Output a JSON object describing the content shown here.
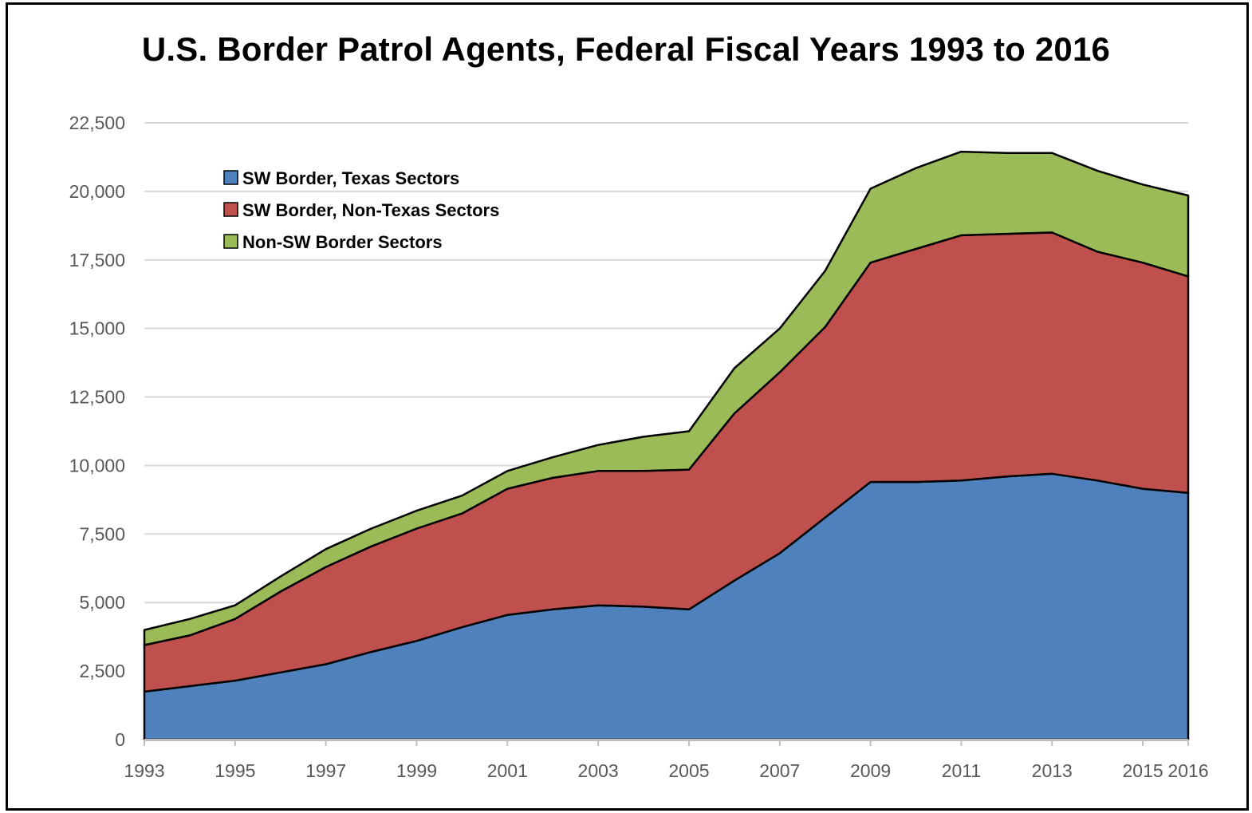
{
  "chart_data": {
    "type": "area",
    "stacked": true,
    "title": "U.S. Border Patrol Agents, Federal Fiscal Years 1993 to 2016",
    "xlabel": "",
    "ylabel": "",
    "ylim": [
      0,
      22500
    ],
    "xlim": [
      1993,
      2016
    ],
    "yticks": [
      0,
      2500,
      5000,
      7500,
      10000,
      12500,
      15000,
      17500,
      20000,
      22500
    ],
    "ytick_labels": [
      "0",
      "2,500",
      "5,000",
      "7,500",
      "10,000",
      "12,500",
      "15,000",
      "17,500",
      "20,000",
      "22,500"
    ],
    "xticks": [
      1993,
      1995,
      1997,
      1999,
      2001,
      2003,
      2005,
      2007,
      2009,
      2011,
      2013,
      2015,
      2016
    ],
    "xtick_labels": [
      "1993",
      "1995",
      "1997",
      "1999",
      "2001",
      "2003",
      "2005",
      "2007",
      "2009",
      "2011",
      "2013",
      "2015",
      "2016"
    ],
    "grid": "horizontal",
    "legend_position": "top-left",
    "x": [
      1993,
      1994,
      1995,
      1996,
      1997,
      1998,
      1999,
      2000,
      2001,
      2002,
      2003,
      2004,
      2005,
      2006,
      2007,
      2008,
      2009,
      2010,
      2011,
      2012,
      2013,
      2014,
      2015,
      2016
    ],
    "series": [
      {
        "name": "SW Border, Texas Sectors",
        "color": "#4f81bd",
        "values": [
          1750,
          1950,
          2150,
          2450,
          2750,
          3200,
          3600,
          4100,
          4550,
          4750,
          4900,
          4850,
          4750,
          5800,
          6800,
          8100,
          9400,
          9400,
          9450,
          9600,
          9700,
          9450,
          9150,
          9000
        ]
      },
      {
        "name": "SW Border, Non-Texas Sectors",
        "color": "#c0504d",
        "values": [
          1700,
          1850,
          2250,
          2950,
          3550,
          3850,
          4100,
          4150,
          4600,
          4800,
          4900,
          4950,
          5100,
          6100,
          6600,
          6950,
          8000,
          8500,
          8950,
          8850,
          8800,
          8350,
          8250,
          7900
        ]
      },
      {
        "name": "Non-SW Border Sectors",
        "color": "#9bbb59",
        "values": [
          550,
          600,
          500,
          550,
          650,
          650,
          650,
          650,
          650,
          750,
          950,
          1250,
          1400,
          1650,
          1600,
          2050,
          2700,
          2950,
          3050,
          2950,
          2900,
          2950,
          2850,
          2950
        ]
      }
    ]
  }
}
